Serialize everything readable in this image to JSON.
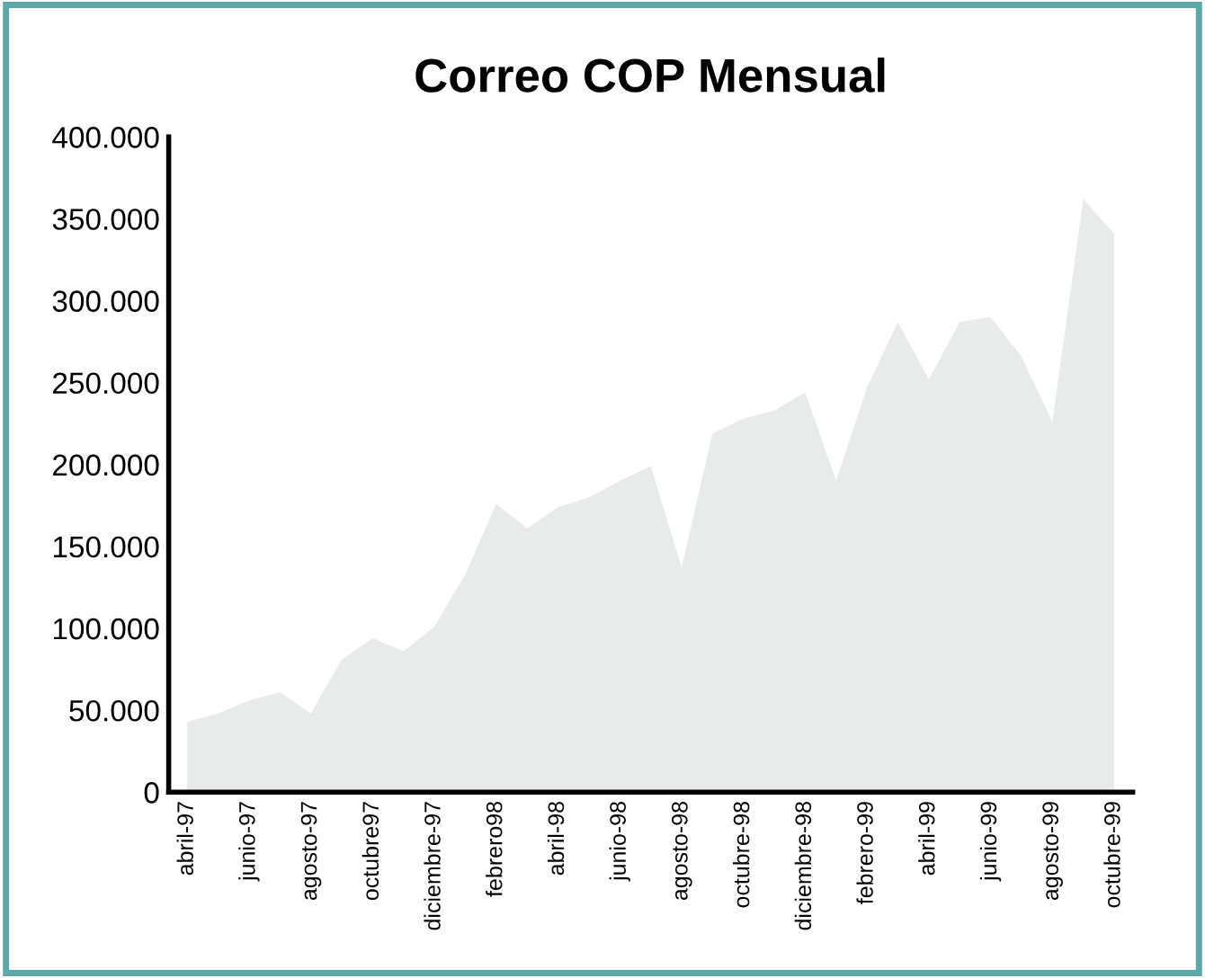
{
  "chart_data": {
    "type": "area",
    "title": "Correo COP Mensual",
    "categories": [
      "abril-97",
      null,
      "junio-97",
      null,
      "agosto-97",
      null,
      "octubre97",
      null,
      "diciembre-97",
      null,
      "febrero98",
      null,
      "abril-98",
      null,
      "junio-98",
      null,
      "agosto-98",
      null,
      "octubre-98",
      null,
      "diciembre-98",
      null,
      "febrero-99",
      null,
      "abril-99",
      null,
      "junio-99",
      null,
      "agosto-99",
      null,
      "octubre-99"
    ],
    "values": [
      43000,
      48000,
      56000,
      61000,
      48000,
      81000,
      94000,
      86000,
      101000,
      133000,
      176000,
      161000,
      174000,
      180000,
      190000,
      199000,
      137000,
      219000,
      228000,
      233000,
      244000,
      190000,
      247000,
      287000,
      252000,
      287000,
      290000,
      266000,
      226000,
      362000,
      341000
    ],
    "color": "#e8ebea",
    "ylim": [
      0,
      400000
    ],
    "yticks": [
      {
        "value": 0,
        "label": "0"
      },
      {
        "value": 50000,
        "label": "50.000"
      },
      {
        "value": 100000,
        "label": "100.000"
      },
      {
        "value": 150000,
        "label": "150.000"
      },
      {
        "value": 200000,
        "label": "200.000"
      },
      {
        "value": 250000,
        "label": "250.000"
      },
      {
        "value": 300000,
        "label": "300.000"
      },
      {
        "value": 350000,
        "label": "350.000"
      },
      {
        "value": 400000,
        "label": "400.000"
      }
    ],
    "grid": false
  }
}
